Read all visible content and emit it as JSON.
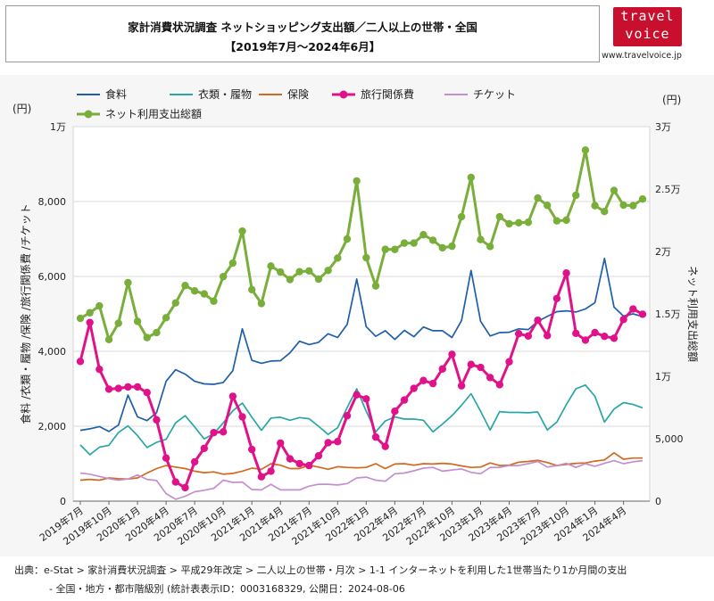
{
  "header": {
    "title_line1": "家計消費状況調査 ネットショッピング支出額／二人以上の世帯・全国",
    "title_line2": "【2019年7月～2024年6月】"
  },
  "logo": {
    "line1": "travel",
    "line2": "voice",
    "url": "www.travelvoice.jp"
  },
  "footer": {
    "line1": "出典：e-Stat > 家計消費状況調査 > 平成29年改定 > 二人以上の世帯・月次 > 1-1 インターネットを利用した1世帯当たり1か月間の支出",
    "line2": "- 全国・地方・都市階級別 (統計表表示ID：0003168329, 公開日：2024-08-06"
  },
  "colors": {
    "food": "#1f5fa8",
    "clothing": "#2aa6a6",
    "insurance": "#d2691e",
    "travel": "#e0128a",
    "ticket": "#c48fcf",
    "total": "#7aae3a"
  },
  "chart_data": {
    "type": "line",
    "x": [
      "2019年7月",
      "2019年8月",
      "2019年9月",
      "2019年10月",
      "2019年11月",
      "2019年12月",
      "2020年1月",
      "2020年2月",
      "2020年3月",
      "2020年4月",
      "2020年5月",
      "2020年6月",
      "2020年7月",
      "2020年8月",
      "2020年9月",
      "2020年10月",
      "2020年11月",
      "2020年12月",
      "2021年1月",
      "2021年2月",
      "2021年3月",
      "2021年4月",
      "2021年5月",
      "2021年6月",
      "2021年7月",
      "2021年8月",
      "2021年9月",
      "2021年10月",
      "2021年11月",
      "2021年12月",
      "2022年1月",
      "2022年2月",
      "2022年3月",
      "2022年4月",
      "2022年5月",
      "2022年6月",
      "2022年7月",
      "2022年8月",
      "2022年9月",
      "2022年10月",
      "2022年11月",
      "2022年12月",
      "2023年1月",
      "2023年2月",
      "2023年3月",
      "2023年4月",
      "2023年5月",
      "2023年6月",
      "2023年7月",
      "2023年8月",
      "2023年9月",
      "2023年10月",
      "2023年11月",
      "2023年12月",
      "2024年1月",
      "2024年2月",
      "2024年3月",
      "2024年4月",
      "2024年5月",
      "2024年6月"
    ],
    "x_ticks": [
      "2019年7月",
      "2019年10月",
      "2020年1月",
      "2020年4月",
      "2020年7月",
      "2020年10月",
      "2021年1月",
      "2021年4月",
      "2021年7月",
      "2021年10月",
      "2022年1月",
      "2022年4月",
      "2022年7月",
      "2022年10月",
      "2023年1月",
      "2023年4月",
      "2023年7月",
      "2023年10月",
      "2024年1月",
      "2024年4月"
    ],
    "y_left": {
      "label": "食料 /衣類・履物 /保険 /旅行関係費 /チケット",
      "unit": "(円)",
      "range": [
        0,
        10000
      ],
      "ticks": [
        "0",
        "2,000",
        "4,000",
        "6,000",
        "8,000",
        "1万"
      ]
    },
    "y_right": {
      "label": "ネット利用支出総額",
      "unit": "(円)",
      "range": [
        0,
        30000
      ],
      "ticks": [
        "0",
        "5,000",
        "1万",
        "1.5万",
        "2万",
        "2.5万",
        "3万"
      ]
    },
    "grid": "horizontal",
    "legend_position": "top",
    "series": [
      {
        "name": "食料",
        "axis": "left",
        "markers": false,
        "values": [
          1890,
          1930,
          1990,
          1860,
          2030,
          2830,
          2250,
          2150,
          2360,
          3200,
          3510,
          3390,
          3200,
          3130,
          3120,
          3170,
          3480,
          4600,
          3760,
          3680,
          3740,
          3750,
          3960,
          4270,
          4180,
          4240,
          4470,
          4370,
          4720,
          5930,
          4660,
          4400,
          4550,
          4320,
          4560,
          4390,
          4650,
          4550,
          4550,
          4370,
          4820,
          6160,
          4800,
          4410,
          4500,
          4510,
          4600,
          4580,
          4800,
          4930,
          5060,
          5080,
          5050,
          5130,
          5300,
          6480,
          5180,
          4940,
          5000,
          4930
        ]
      },
      {
        "name": "衣類・履物",
        "axis": "left",
        "markers": false,
        "values": [
          1500,
          1240,
          1440,
          1490,
          1830,
          2010,
          1750,
          1430,
          1570,
          1650,
          2090,
          2280,
          1980,
          1660,
          1800,
          2090,
          2410,
          2620,
          2240,
          1890,
          2220,
          2240,
          2160,
          2230,
          2200,
          2000,
          1780,
          1960,
          2500,
          3000,
          2400,
          1850,
          2140,
          2250,
          2190,
          2190,
          2160,
          1850,
          2060,
          2280,
          2560,
          2870,
          2400,
          1900,
          2390,
          2370,
          2370,
          2360,
          2380,
          1900,
          2110,
          2580,
          3000,
          3100,
          2800,
          2110,
          2460,
          2630,
          2580,
          2490
        ]
      },
      {
        "name": "保険",
        "axis": "left",
        "markers": false,
        "values": [
          560,
          580,
          560,
          620,
          600,
          590,
          620,
          750,
          870,
          950,
          910,
          870,
          800,
          760,
          780,
          720,
          740,
          800,
          880,
          850,
          1000,
          960,
          870,
          870,
          960,
          910,
          850,
          920,
          900,
          890,
          900,
          1000,
          870,
          990,
          1000,
          960,
          1000,
          990,
          1010,
          990,
          940,
          900,
          910,
          1020,
          950,
          960,
          1040,
          1060,
          1090,
          1030,
          950,
          980,
          1010,
          1020,
          1070,
          1100,
          1290,
          1120,
          1150,
          1150
        ]
      },
      {
        "name": "旅行関係費",
        "axis": "left",
        "markers": true,
        "values": [
          3730,
          4770,
          3520,
          2990,
          3010,
          3050,
          3050,
          2900,
          2170,
          1150,
          510,
          360,
          1050,
          1410,
          1830,
          1850,
          2800,
          2250,
          1380,
          650,
          800,
          1550,
          1130,
          1000,
          950,
          1210,
          1560,
          1590,
          2280,
          2840,
          2730,
          1710,
          1460,
          2400,
          2700,
          3010,
          3220,
          3140,
          3530,
          3920,
          3080,
          3650,
          3570,
          3300,
          3110,
          3720,
          4470,
          4410,
          4830,
          4420,
          5410,
          6090,
          4480,
          4300,
          4500,
          4400,
          4350,
          4850,
          5130,
          4990
        ]
      },
      {
        "name": "チケット",
        "axis": "left",
        "markers": false,
        "values": [
          750,
          720,
          660,
          600,
          560,
          590,
          700,
          580,
          550,
          200,
          50,
          130,
          250,
          290,
          340,
          560,
          500,
          510,
          310,
          300,
          450,
          300,
          300,
          300,
          400,
          450,
          450,
          430,
          470,
          620,
          640,
          560,
          530,
          730,
          750,
          810,
          880,
          900,
          800,
          830,
          860,
          770,
          730,
          900,
          900,
          950,
          950,
          1000,
          1060,
          910,
          950,
          1010,
          900,
          1000,
          930,
          1010,
          1080,
          1000,
          1050,
          1080
        ]
      },
      {
        "name": "ネット利用支出総額",
        "axis": "right",
        "markers": true,
        "values": [
          14640,
          15090,
          15640,
          12940,
          14250,
          17500,
          14400,
          13100,
          13500,
          14690,
          15880,
          17270,
          16840,
          16600,
          16020,
          17990,
          19070,
          21630,
          16940,
          15830,
          18830,
          18350,
          17750,
          18380,
          18440,
          17780,
          18480,
          19470,
          21000,
          25650,
          19500,
          17240,
          20170,
          20160,
          20670,
          20670,
          21340,
          20900,
          20290,
          20420,
          22780,
          25930,
          20950,
          20400,
          22780,
          22220,
          22300,
          22340,
          24280,
          23690,
          22450,
          22510,
          24500,
          28120,
          23670,
          23200,
          24890,
          23710,
          23670,
          24200
        ]
      }
    ]
  }
}
